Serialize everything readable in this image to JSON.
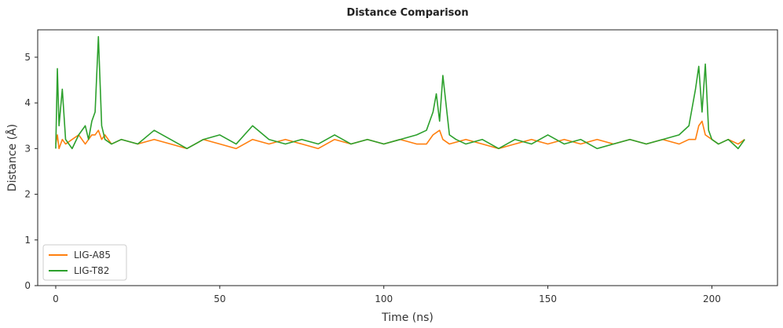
{
  "chart_data": {
    "type": "line",
    "title": "Distance Comparison",
    "xlabel": "Time (ns)",
    "ylabel": "Distance (Å)",
    "xlim": [
      -5.5,
      220
    ],
    "ylim": [
      0,
      5.6
    ],
    "xticks": [
      0,
      50,
      100,
      150,
      200
    ],
    "yticks": [
      0,
      1,
      2,
      3,
      4,
      5
    ],
    "xtick_labels": [
      "0",
      "50",
      "100",
      "150",
      "200"
    ],
    "ytick_labels": [
      "0",
      "1",
      "2",
      "3",
      "4",
      "5"
    ],
    "grid": false,
    "legend_position": "bottom-left",
    "series": [
      {
        "name": "LIG-A85",
        "color": "#ff7f0e",
        "x": [
          0,
          0.5,
          1,
          2,
          3,
          5,
          7,
          9,
          10,
          11,
          12,
          13,
          14,
          15,
          17,
          20,
          25,
          30,
          35,
          40,
          45,
          50,
          55,
          60,
          65,
          70,
          75,
          80,
          85,
          90,
          95,
          100,
          105,
          110,
          113,
          115,
          117,
          118,
          120,
          125,
          130,
          135,
          140,
          145,
          150,
          155,
          160,
          165,
          170,
          175,
          180,
          185,
          190,
          193,
          195,
          196,
          197,
          198,
          200,
          202,
          205,
          208,
          210
        ],
        "values": [
          3.1,
          3.3,
          3.0,
          3.2,
          3.1,
          3.2,
          3.3,
          3.1,
          3.2,
          3.3,
          3.3,
          3.4,
          3.2,
          3.3,
          3.1,
          3.2,
          3.1,
          3.2,
          3.1,
          3.0,
          3.2,
          3.1,
          3.0,
          3.2,
          3.1,
          3.2,
          3.1,
          3.0,
          3.2,
          3.1,
          3.2,
          3.1,
          3.2,
          3.1,
          3.1,
          3.3,
          3.4,
          3.2,
          3.1,
          3.2,
          3.1,
          3.0,
          3.1,
          3.2,
          3.1,
          3.2,
          3.1,
          3.2,
          3.1,
          3.2,
          3.1,
          3.2,
          3.1,
          3.2,
          3.2,
          3.5,
          3.6,
          3.3,
          3.2,
          3.1,
          3.2,
          3.1,
          3.2
        ]
      },
      {
        "name": "LIG-T82",
        "color": "#2ca02c",
        "x": [
          0,
          0.5,
          1,
          2,
          3,
          5,
          7,
          9,
          10,
          11,
          12,
          13,
          14,
          15,
          17,
          20,
          25,
          30,
          35,
          40,
          45,
          50,
          55,
          60,
          65,
          70,
          75,
          80,
          85,
          90,
          95,
          100,
          105,
          110,
          113,
          115,
          116,
          117,
          118,
          120,
          122,
          125,
          130,
          135,
          140,
          145,
          150,
          155,
          160,
          165,
          170,
          175,
          180,
          185,
          190,
          193,
          195,
          196,
          197,
          198,
          199,
          200,
          202,
          205,
          208,
          210
        ],
        "values": [
          3.0,
          4.75,
          3.5,
          4.3,
          3.2,
          3.0,
          3.3,
          3.5,
          3.2,
          3.6,
          3.8,
          5.45,
          3.5,
          3.2,
          3.1,
          3.2,
          3.1,
          3.4,
          3.2,
          3.0,
          3.2,
          3.3,
          3.1,
          3.5,
          3.2,
          3.1,
          3.2,
          3.1,
          3.3,
          3.1,
          3.2,
          3.1,
          3.2,
          3.3,
          3.4,
          3.8,
          4.2,
          3.6,
          4.6,
          3.3,
          3.2,
          3.1,
          3.2,
          3.0,
          3.2,
          3.1,
          3.3,
          3.1,
          3.2,
          3.0,
          3.1,
          3.2,
          3.1,
          3.2,
          3.3,
          3.5,
          4.3,
          4.8,
          3.8,
          4.85,
          3.4,
          3.2,
          3.1,
          3.2,
          3.0,
          3.2
        ]
      }
    ]
  }
}
